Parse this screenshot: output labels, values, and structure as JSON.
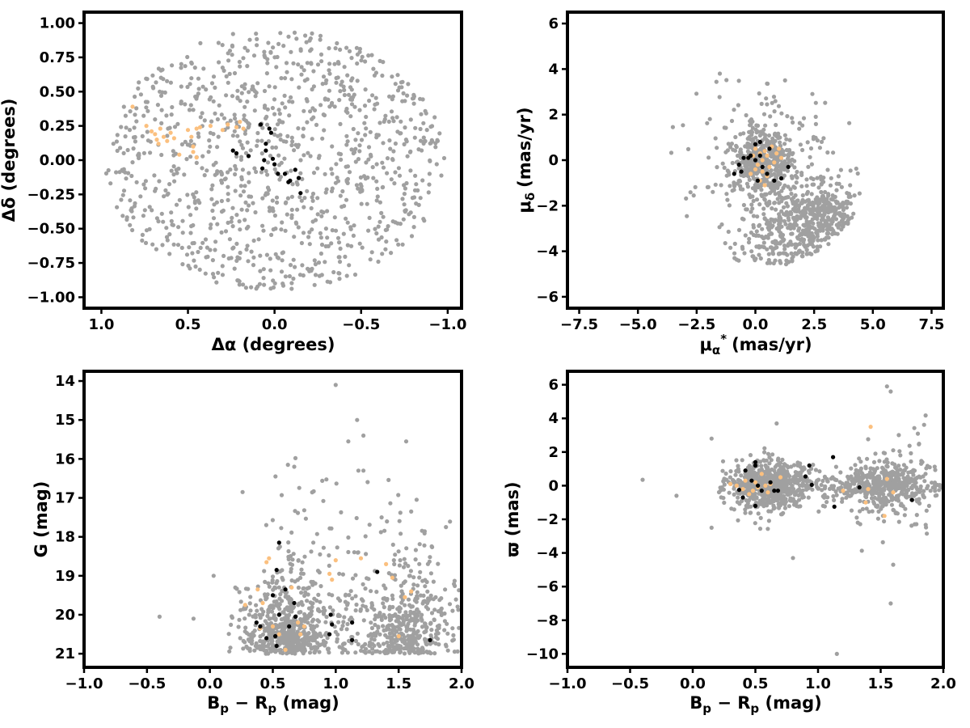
{
  "colors": {
    "field": "#a0a0a0",
    "candidate": "#fbc07f",
    "member": "#000000"
  },
  "chart_data": [
    {
      "id": "sky",
      "type": "scatter",
      "xlabel": "Δα (degrees)",
      "ylabel": "Δδ (degrees)",
      "xlim": [
        1.1,
        -1.08
      ],
      "ylim": [
        -1.08,
        1.08
      ],
      "xticks": [
        "1.0",
        "0.5",
        "0.0",
        "−0.5",
        "−1.0"
      ],
      "xtick_values": [
        1.0,
        0.5,
        0.0,
        -0.5,
        -1.0
      ],
      "yticks": [
        "1.00",
        "0.75",
        "0.50",
        "0.25",
        "0.00",
        "−0.25",
        "−0.50",
        "−0.75",
        "−1.00"
      ],
      "ytick_values": [
        1.0,
        0.75,
        0.5,
        0.25,
        0.0,
        -0.25,
        -0.5,
        -0.75,
        -1.0
      ],
      "field_generator": {
        "kind": "disk",
        "center": [
          0,
          0
        ],
        "radius": [
          0.98,
          0.95
        ],
        "n": 1050
      },
      "candidates": [
        [
          0.82,
          0.39
        ],
        [
          0.74,
          0.25
        ],
        [
          0.71,
          0.21
        ],
        [
          0.69,
          0.19
        ],
        [
          0.68,
          0.15
        ],
        [
          0.67,
          0.12
        ],
        [
          0.66,
          0.23
        ],
        [
          0.64,
          0.17
        ],
        [
          0.6,
          0.2
        ],
        [
          0.58,
          0.16
        ],
        [
          0.55,
          0.04
        ],
        [
          0.5,
          0.22
        ],
        [
          0.48,
          0.17
        ],
        [
          0.47,
          0.06
        ],
        [
          0.45,
          0.02
        ],
        [
          0.45,
          0.23
        ],
        [
          0.43,
          0.24
        ],
        [
          0.37,
          0.25
        ],
        [
          0.3,
          0.22
        ],
        [
          0.27,
          0.26
        ],
        [
          0.22,
          0.24
        ],
        [
          0.2,
          0.28
        ],
        [
          0.18,
          0.23
        ],
        [
          0.47,
          0.1
        ],
        [
          0.62,
          0.14
        ]
      ],
      "members": [
        [
          0.24,
          0.07
        ],
        [
          0.22,
          0.05
        ],
        [
          0.15,
          0.03
        ],
        [
          0.08,
          0.26
        ],
        [
          0.05,
          0.12
        ],
        [
          0.05,
          0.07
        ],
        [
          0.03,
          0.23
        ],
        [
          0.02,
          0.2
        ],
        [
          0.01,
          0.01
        ],
        [
          0.0,
          -0.03
        ],
        [
          0.06,
          0.0
        ],
        [
          0.07,
          -0.06
        ],
        [
          -0.02,
          -0.1
        ],
        [
          -0.06,
          -0.1
        ],
        [
          -0.08,
          -0.16
        ],
        [
          -0.12,
          -0.07
        ],
        [
          -0.14,
          -0.13
        ],
        [
          -0.15,
          -0.24
        ],
        [
          -0.09,
          -0.15
        ]
      ]
    },
    {
      "id": "pm",
      "type": "scatter",
      "xlabel": "μα* (mas/yr)",
      "ylabel": "μδ (mas/yr)",
      "xlim": [
        -8.0,
        8.0
      ],
      "ylim": [
        -6.5,
        6.5
      ],
      "xticks": [
        "−7.5",
        "−5.0",
        "−2.5",
        "0.0",
        "2.5",
        "5.0",
        "7.5"
      ],
      "xtick_values": [
        -7.5,
        -5.0,
        -2.5,
        0.0,
        2.5,
        5.0,
        7.5
      ],
      "yticks": [
        "6",
        "4",
        "2",
        "0",
        "−2",
        "−4",
        "−6"
      ],
      "ytick_values": [
        6,
        4,
        2,
        0,
        -2,
        -4,
        -6
      ],
      "field_generator": {
        "kind": "pm-mix",
        "n": 1150
      },
      "candidates": [
        [
          0.0,
          0.5
        ],
        [
          0.2,
          0.3
        ],
        [
          0.4,
          0.4
        ],
        [
          0.5,
          0.2
        ],
        [
          0.1,
          -0.2
        ],
        [
          0.3,
          -0.5
        ],
        [
          0.6,
          -0.3
        ],
        [
          0.9,
          0.3
        ],
        [
          1.1,
          0.1
        ],
        [
          0.2,
          -0.9
        ],
        [
          0.4,
          -1.1
        ],
        [
          -0.3,
          0.1
        ],
        [
          0.7,
          0.6
        ],
        [
          -0.1,
          0.2
        ],
        [
          0.3,
          0.0
        ],
        [
          0.8,
          -0.1
        ],
        [
          1.0,
          0.5
        ],
        [
          0.5,
          -0.7
        ],
        [
          0.0,
          -0.4
        ],
        [
          -0.2,
          -0.6
        ]
      ],
      "members": [
        [
          -0.9,
          -0.6
        ],
        [
          -0.6,
          -0.5
        ],
        [
          -0.5,
          0.1
        ],
        [
          -0.3,
          0.1
        ],
        [
          -0.2,
          0.2
        ],
        [
          0.0,
          0.7
        ],
        [
          0.0,
          0.0
        ],
        [
          0.1,
          -0.9
        ],
        [
          0.2,
          0.2
        ],
        [
          0.3,
          -0.3
        ],
        [
          0.5,
          -0.6
        ],
        [
          0.6,
          0.5
        ],
        [
          0.8,
          -0.9
        ],
        [
          1.1,
          -0.8
        ],
        [
          1.4,
          -0.3
        ],
        [
          -0.7,
          -0.2
        ],
        [
          0.2,
          0.8
        ]
      ]
    },
    {
      "id": "cmd",
      "type": "scatter",
      "xlabel": "Bp − Rp (mag)",
      "ylabel": "G (mag)",
      "xlim": [
        -1.0,
        2.0
      ],
      "ylim": [
        13.75,
        21.35
      ],
      "ydir": "inverted",
      "xticks": [
        "−1.0",
        "−0.5",
        "0.0",
        "0.5",
        "1.0",
        "1.5",
        "2.0"
      ],
      "xtick_values": [
        -1.0,
        -0.5,
        0.0,
        0.5,
        1.0,
        1.5,
        2.0
      ],
      "yticks": [
        "21",
        "20",
        "19",
        "18",
        "17",
        "16",
        "15",
        "14"
      ],
      "ytick_values": [
        21,
        20,
        19,
        18,
        17,
        16,
        15,
        14
      ],
      "field_generator": {
        "kind": "cmd-mix",
        "n": 1150,
        "extra": [
          [
            -0.4,
            20.05
          ],
          [
            -0.13,
            20.1
          ],
          [
            0.03,
            19.0
          ],
          [
            0.26,
            16.85
          ],
          [
            0.62,
            16.15
          ],
          [
            0.67,
            16.2
          ],
          [
            0.68,
            15.98
          ],
          [
            1.0,
            14.1
          ],
          [
            1.1,
            15.55
          ],
          [
            1.17,
            15.0
          ],
          [
            1.22,
            15.4
          ],
          [
            1.56,
            15.55
          ],
          [
            1.6,
            17.35
          ],
          [
            1.18,
            16.3
          ],
          [
            1.22,
            16.3
          ]
        ]
      },
      "candidates": [
        [
          0.28,
          19.75
        ],
        [
          0.38,
          19.35
        ],
        [
          0.42,
          19.7
        ],
        [
          0.45,
          18.65
        ],
        [
          0.47,
          18.55
        ],
        [
          0.5,
          20.3
        ],
        [
          0.55,
          20.5
        ],
        [
          0.6,
          20.9
        ],
        [
          0.65,
          19.3
        ],
        [
          0.7,
          20.2
        ],
        [
          0.72,
          20.5
        ],
        [
          0.95,
          18.95
        ],
        [
          0.97,
          19.1
        ],
        [
          1.0,
          18.6
        ],
        [
          1.2,
          18.55
        ],
        [
          1.4,
          18.7
        ],
        [
          1.45,
          19.05
        ],
        [
          1.55,
          19.55
        ],
        [
          1.6,
          19.4
        ],
        [
          1.5,
          20.55
        ],
        [
          0.4,
          20.35
        ],
        [
          0.75,
          20.3
        ]
      ],
      "members": [
        [
          0.37,
          20.2
        ],
        [
          0.4,
          20.3
        ],
        [
          0.45,
          20.6
        ],
        [
          0.5,
          19.5
        ],
        [
          0.52,
          20.55
        ],
        [
          0.53,
          20.8
        ],
        [
          0.53,
          18.85
        ],
        [
          0.55,
          20.0
        ],
        [
          0.55,
          18.15
        ],
        [
          0.6,
          19.35
        ],
        [
          0.63,
          20.3
        ],
        [
          0.67,
          19.7
        ],
        [
          0.68,
          20.05
        ],
        [
          0.95,
          20.5
        ],
        [
          0.96,
          20.0
        ],
        [
          0.97,
          20.25
        ],
        [
          1.13,
          20.2
        ],
        [
          1.13,
          20.65
        ],
        [
          1.33,
          18.9
        ],
        [
          1.75,
          20.65
        ]
      ]
    },
    {
      "id": "parallax",
      "type": "scatter",
      "xlabel": "Bp − Rp (mag)",
      "ylabel": "ϖ (mas)",
      "xlim": [
        -1.0,
        2.0
      ],
      "ylim": [
        -10.8,
        6.8
      ],
      "xticks": [
        "−1.0",
        "−0.5",
        "0.0",
        "0.5",
        "1.0",
        "1.5",
        "2.0"
      ],
      "xtick_values": [
        -1.0,
        -0.5,
        0.0,
        0.5,
        1.0,
        1.5,
        2.0
      ],
      "yticks": [
        "6",
        "4",
        "2",
        "0",
        "−2",
        "−4",
        "−6",
        "−8",
        "−10"
      ],
      "ytick_values": [
        6,
        4,
        2,
        0,
        -2,
        -4,
        -6,
        -8,
        -10
      ],
      "field_generator": {
        "kind": "plx-mix",
        "n": 1200,
        "extra": [
          [
            -0.4,
            0.35
          ],
          [
            -0.13,
            -0.6
          ],
          [
            1.15,
            -10.0
          ],
          [
            1.58,
            -7.0
          ],
          [
            1.55,
            5.9
          ],
          [
            1.58,
            5.6
          ],
          [
            0.8,
            -4.3
          ],
          [
            0.67,
            3.7
          ],
          [
            1.6,
            -4.7
          ],
          [
            0.15,
            -2.5
          ],
          [
            0.15,
            2.8
          ]
        ]
      },
      "candidates": [
        [
          0.3,
          0.1
        ],
        [
          0.35,
          0.0
        ],
        [
          0.4,
          -0.2
        ],
        [
          0.42,
          0.3
        ],
        [
          0.45,
          -0.5
        ],
        [
          0.48,
          -0.3
        ],
        [
          0.5,
          0.2
        ],
        [
          0.52,
          -0.1
        ],
        [
          0.55,
          0.7
        ],
        [
          0.6,
          -0.4
        ],
        [
          0.62,
          0.1
        ],
        [
          0.7,
          0.5
        ],
        [
          1.2,
          -0.3
        ],
        [
          1.38,
          -1.0
        ],
        [
          1.4,
          -0.2
        ],
        [
          1.42,
          3.5
        ],
        [
          1.53,
          -1.8
        ],
        [
          1.55,
          0.4
        ],
        [
          1.6,
          -0.4
        ],
        [
          0.58,
          0.0
        ]
      ],
      "members": [
        [
          0.37,
          -0.25
        ],
        [
          0.4,
          -0.7
        ],
        [
          0.42,
          0.9
        ],
        [
          0.47,
          0.3
        ],
        [
          0.5,
          1.4
        ],
        [
          0.5,
          -1.2
        ],
        [
          0.52,
          0.0
        ],
        [
          0.55,
          -0.3
        ],
        [
          0.62,
          0.2
        ],
        [
          0.65,
          -0.3
        ],
        [
          0.68,
          -0.3
        ],
        [
          0.9,
          0.55
        ],
        [
          0.93,
          1.2
        ],
        [
          0.95,
          0.05
        ],
        [
          1.12,
          1.7
        ],
        [
          1.13,
          -1.25
        ],
        [
          1.33,
          -0.1
        ],
        [
          1.75,
          -0.85
        ],
        [
          0.5,
          1.2
        ]
      ]
    }
  ]
}
